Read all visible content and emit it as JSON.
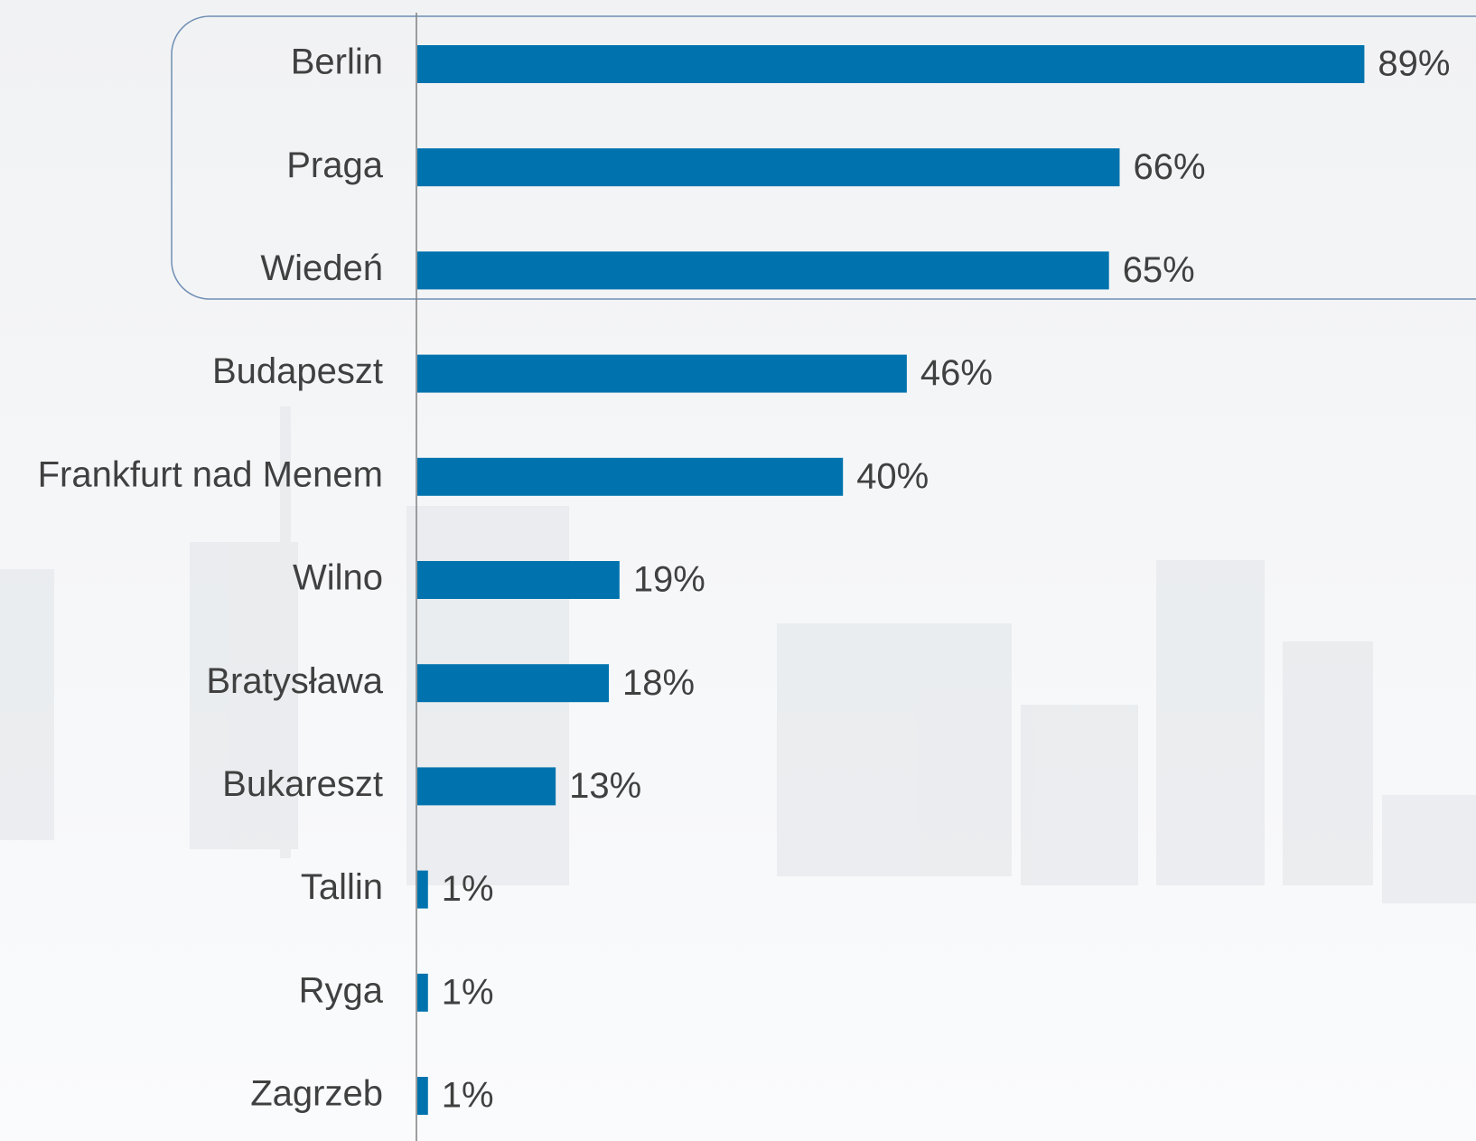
{
  "chart_data": {
    "type": "bar",
    "orientation": "horizontal",
    "categories": [
      "Berlin",
      "Praga",
      "Wiedeń",
      "Budapeszt",
      "Frankfurt nad Menem",
      "Wilno",
      "Bratysława",
      "Bukareszt",
      "Tallin",
      "Ryga",
      "Zagrzeb"
    ],
    "values": [
      89,
      66,
      65,
      46,
      40,
      19,
      18,
      13,
      1,
      1,
      1
    ],
    "value_labels": [
      "89%",
      "66%",
      "65%",
      "46%",
      "40%",
      "19%",
      "18%",
      "13%",
      "1%",
      "1%",
      "1%"
    ],
    "color": "#0073ae"
  }
}
